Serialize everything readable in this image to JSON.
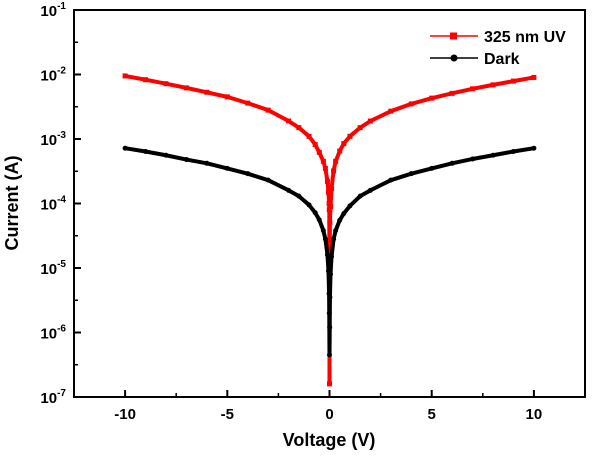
{
  "chart_data": {
    "type": "line",
    "xlabel": "Voltage (V)",
    "ylabel": "Current (A)",
    "x_scale": "linear",
    "y_scale": "log",
    "xlim": [
      -12.5,
      12.5
    ],
    "ylim": [
      1e-07,
      0.1
    ],
    "x_ticks": [
      -10,
      -5,
      0,
      5,
      10
    ],
    "x_tick_labels": [
      "-10",
      "-5",
      "0",
      "5",
      "10"
    ],
    "y_ticks": [
      1e-07,
      1e-06,
      1e-05,
      0.0001,
      0.001,
      0.01,
      0.1
    ],
    "y_tick_labels": [
      {
        "base": "10",
        "exp": "-7"
      },
      {
        "base": "10",
        "exp": "-6"
      },
      {
        "base": "10",
        "exp": "-5"
      },
      {
        "base": "10",
        "exp": "-4"
      },
      {
        "base": "10",
        "exp": "-3"
      },
      {
        "base": "10",
        "exp": "-2"
      },
      {
        "base": "10",
        "exp": "-1"
      }
    ],
    "grid": false,
    "legend_position": "top-right",
    "series": [
      {
        "name": "325 nm UV",
        "color": "#ff0000",
        "marker": "square",
        "x": [
          -10,
          -9,
          -8,
          -7,
          -6,
          -5,
          -4,
          -3,
          -2,
          -1.5,
          -1,
          -0.7,
          -0.5,
          -0.3,
          -0.2,
          -0.1,
          -0.05,
          -0.02,
          -0.01,
          0,
          0.01,
          0.02,
          0.05,
          0.1,
          0.2,
          0.3,
          0.5,
          0.7,
          1,
          1.5,
          2,
          3,
          4,
          5,
          6,
          7,
          8,
          9,
          10
        ],
        "y": [
          0.0095,
          0.0083,
          0.0072,
          0.0062,
          0.0053,
          0.0045,
          0.0036,
          0.0028,
          0.0019,
          0.0015,
          0.0011,
          0.00082,
          0.00062,
          0.00045,
          0.00035,
          0.00022,
          0.00015,
          0.0001,
          8e-05,
          1.6e-07,
          1.7e-05,
          5e-05,
          9e-05,
          0.00017,
          0.00032,
          0.00045,
          0.00065,
          0.00085,
          0.0011,
          0.0015,
          0.0019,
          0.0027,
          0.0035,
          0.0043,
          0.0051,
          0.006,
          0.0069,
          0.0079,
          0.009
        ]
      },
      {
        "name": "Dark",
        "color": "#000000",
        "marker": "circle",
        "x": [
          -10,
          -9,
          -8,
          -7,
          -6,
          -5,
          -4,
          -3,
          -2,
          -1.5,
          -1,
          -0.7,
          -0.5,
          -0.3,
          -0.2,
          -0.1,
          -0.05,
          -0.02,
          -0.01,
          0,
          0.01,
          0.02,
          0.05,
          0.1,
          0.2,
          0.3,
          0.5,
          0.7,
          1,
          1.5,
          2,
          3,
          4,
          5,
          6,
          7,
          8,
          9,
          10
        ],
        "y": [
          0.00072,
          0.00064,
          0.00056,
          0.00048,
          0.00042,
          0.00035,
          0.00029,
          0.00023,
          0.00016,
          0.00013,
          9.5e-05,
          7.2e-05,
          5.6e-05,
          3.8e-05,
          2.8e-05,
          1.6e-05,
          9e-06,
          4e-06,
          2e-06,
          4.5e-07,
          1.2e-06,
          3.5e-06,
          8e-06,
          1.5e-05,
          2.8e-05,
          3.8e-05,
          5.5e-05,
          7e-05,
          9.2e-05,
          0.00013,
          0.00016,
          0.00023,
          0.00029,
          0.00035,
          0.00042,
          0.00049,
          0.00056,
          0.00064,
          0.00072
        ]
      }
    ]
  }
}
